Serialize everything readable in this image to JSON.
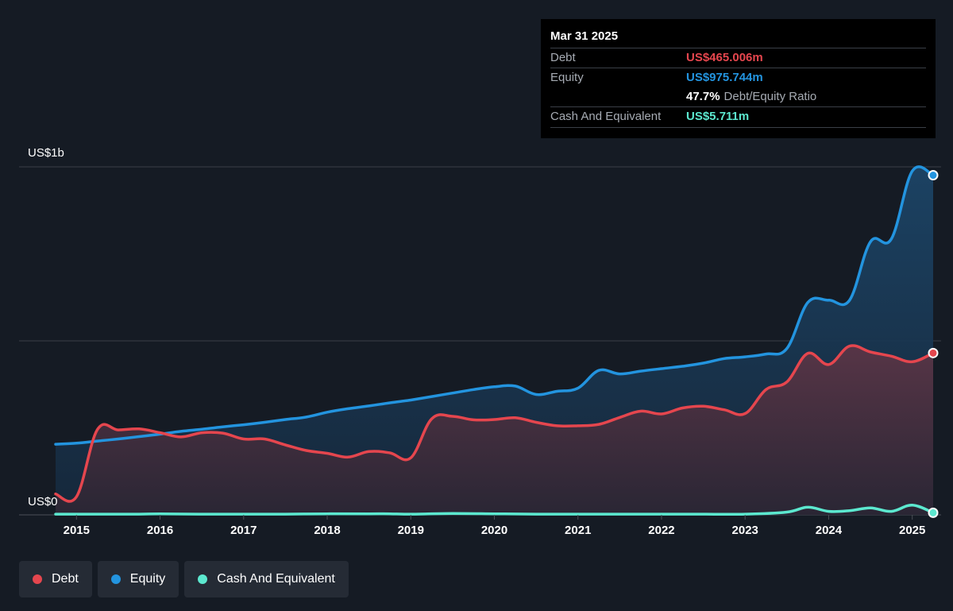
{
  "colors": {
    "background": "#151b24",
    "debt": "#e5464e",
    "equity": "#2394df",
    "cash": "#5ce8cf",
    "grid": "#3a3f47"
  },
  "tooltip": {
    "date": "Mar 31 2025",
    "debt_label": "Debt",
    "debt_value": "US$465.006m",
    "equity_label": "Equity",
    "equity_value": "US$975.744m",
    "ratio_value": "47.7%",
    "ratio_label": "Debt/Equity Ratio",
    "cash_label": "Cash And Equivalent",
    "cash_value": "US$5.711m"
  },
  "legend": [
    {
      "label": "Debt",
      "color": "#e5464e"
    },
    {
      "label": "Equity",
      "color": "#2394df"
    },
    {
      "label": "Cash And Equivalent",
      "color": "#5ce8cf"
    }
  ],
  "chart_data": {
    "type": "area",
    "y_top_label": "US$1b",
    "y_bottom_label": "US$0",
    "ylim": [
      0,
      1000
    ],
    "y_unit": "US$m",
    "xlim": [
      2014.75,
      2025.25
    ],
    "x_ticks": [
      "2015",
      "2016",
      "2017",
      "2018",
      "2019",
      "2020",
      "2021",
      "2022",
      "2023",
      "2024",
      "2025"
    ],
    "grid": true,
    "legend_position": "bottom-left",
    "series": [
      {
        "name": "Debt",
        "color": "#e5464e",
        "points": [
          [
            2014.75,
            60
          ],
          [
            2015.0,
            52
          ],
          [
            2015.25,
            245
          ],
          [
            2015.5,
            244
          ],
          [
            2015.75,
            247
          ],
          [
            2016.0,
            236
          ],
          [
            2016.25,
            224
          ],
          [
            2016.5,
            236
          ],
          [
            2016.75,
            235
          ],
          [
            2017.0,
            218
          ],
          [
            2017.25,
            218
          ],
          [
            2017.5,
            201
          ],
          [
            2017.75,
            185
          ],
          [
            2018.0,
            177
          ],
          [
            2018.25,
            166
          ],
          [
            2018.5,
            182
          ],
          [
            2018.75,
            178
          ],
          [
            2019.0,
            164
          ],
          [
            2019.25,
            276
          ],
          [
            2019.5,
            283
          ],
          [
            2019.75,
            273
          ],
          [
            2020.0,
            274
          ],
          [
            2020.25,
            279
          ],
          [
            2020.5,
            266
          ],
          [
            2020.75,
            256
          ],
          [
            2021.0,
            256
          ],
          [
            2021.25,
            260
          ],
          [
            2021.5,
            280
          ],
          [
            2021.75,
            298
          ],
          [
            2022.0,
            290
          ],
          [
            2022.25,
            307
          ],
          [
            2022.5,
            312
          ],
          [
            2022.75,
            302
          ],
          [
            2023.0,
            291
          ],
          [
            2023.25,
            360
          ],
          [
            2023.5,
            382
          ],
          [
            2023.75,
            464
          ],
          [
            2024.0,
            432
          ],
          [
            2024.25,
            485
          ],
          [
            2024.5,
            468
          ],
          [
            2024.75,
            456
          ],
          [
            2025.0,
            440
          ],
          [
            2025.25,
            465
          ]
        ]
      },
      {
        "name": "Equity",
        "color": "#2394df",
        "points": [
          [
            2014.75,
            203
          ],
          [
            2015.0,
            206
          ],
          [
            2015.25,
            212
          ],
          [
            2015.5,
            218
          ],
          [
            2015.75,
            225
          ],
          [
            2016.0,
            232
          ],
          [
            2016.25,
            240
          ],
          [
            2016.5,
            246
          ],
          [
            2016.75,
            253
          ],
          [
            2017.0,
            259
          ],
          [
            2017.25,
            266
          ],
          [
            2017.5,
            274
          ],
          [
            2017.75,
            281
          ],
          [
            2018.0,
            295
          ],
          [
            2018.25,
            305
          ],
          [
            2018.5,
            313
          ],
          [
            2018.75,
            322
          ],
          [
            2019.0,
            330
          ],
          [
            2019.25,
            340
          ],
          [
            2019.5,
            350
          ],
          [
            2019.75,
            360
          ],
          [
            2020.0,
            368
          ],
          [
            2020.25,
            370
          ],
          [
            2020.5,
            346
          ],
          [
            2020.75,
            355
          ],
          [
            2021.0,
            364
          ],
          [
            2021.25,
            415
          ],
          [
            2021.5,
            405
          ],
          [
            2021.75,
            413
          ],
          [
            2022.0,
            420
          ],
          [
            2022.25,
            427
          ],
          [
            2022.5,
            436
          ],
          [
            2022.75,
            449
          ],
          [
            2023.0,
            454
          ],
          [
            2023.25,
            462
          ],
          [
            2023.5,
            478
          ],
          [
            2023.75,
            610
          ],
          [
            2024.0,
            617
          ],
          [
            2024.25,
            617
          ],
          [
            2024.5,
            785
          ],
          [
            2024.75,
            793
          ],
          [
            2025.0,
            988
          ],
          [
            2025.25,
            976
          ]
        ]
      },
      {
        "name": "Cash And Equivalent",
        "color": "#5ce8cf",
        "points": [
          [
            2014.75,
            2
          ],
          [
            2015.25,
            2
          ],
          [
            2015.75,
            2
          ],
          [
            2016.0,
            3
          ],
          [
            2016.5,
            2
          ],
          [
            2017.0,
            2
          ],
          [
            2017.5,
            2
          ],
          [
            2018.0,
            3
          ],
          [
            2018.5,
            3
          ],
          [
            2018.75,
            3
          ],
          [
            2019.0,
            2
          ],
          [
            2019.5,
            4
          ],
          [
            2020.0,
            3
          ],
          [
            2020.5,
            2
          ],
          [
            2021.0,
            2
          ],
          [
            2021.5,
            2
          ],
          [
            2022.0,
            2
          ],
          [
            2022.5,
            2
          ],
          [
            2023.0,
            2
          ],
          [
            2023.5,
            8
          ],
          [
            2023.75,
            22
          ],
          [
            2024.0,
            10
          ],
          [
            2024.25,
            12
          ],
          [
            2024.5,
            20
          ],
          [
            2024.75,
            10
          ],
          [
            2025.0,
            28
          ],
          [
            2025.25,
            6
          ]
        ]
      }
    ]
  }
}
